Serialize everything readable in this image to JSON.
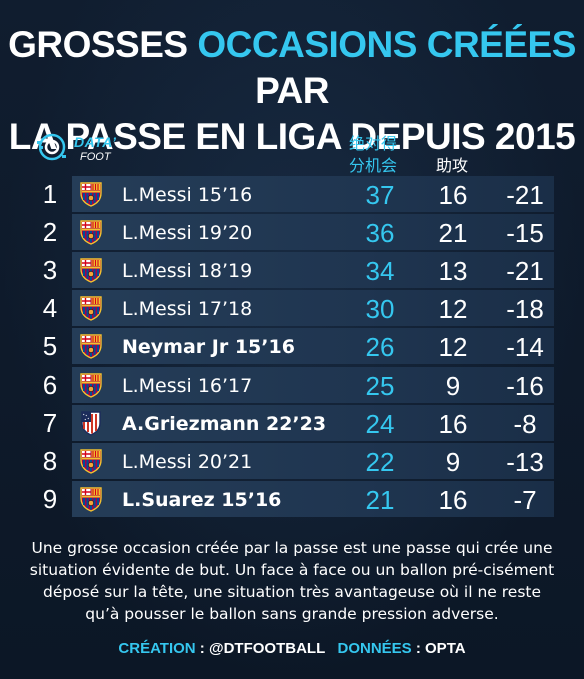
{
  "title": {
    "part1": "GROSSES ",
    "accent": "OCCASIONS CRÉÉES",
    "part2": " PAR",
    "line2": "LA PASSE EN LIGA DEPUIS 2015"
  },
  "logo": {
    "data": "DATA’",
    "foot": "FOOT"
  },
  "headers": {
    "big_chances": [
      "绝对得",
      "分机会"
    ],
    "assists": "助攻"
  },
  "colors": {
    "accent": "#35c7ef",
    "background": "#0e1a2b",
    "row": "#223a55"
  },
  "rows": [
    {
      "rank": "1",
      "player": "L.Messi 15’16",
      "club": "barcelona",
      "big_chances": "37",
      "assists": "16",
      "diff": "-21"
    },
    {
      "rank": "2",
      "player": "L.Messi 19’20",
      "club": "barcelona",
      "big_chances": "36",
      "assists": "21",
      "diff": "-15"
    },
    {
      "rank": "3",
      "player": "L.Messi 18’19",
      "club": "barcelona",
      "big_chances": "34",
      "assists": "13",
      "diff": "-21"
    },
    {
      "rank": "4",
      "player": "L.Messi 17’18",
      "club": "barcelona",
      "big_chances": "30",
      "assists": "12",
      "diff": "-18"
    },
    {
      "rank": "5",
      "player": "Neymar Jr 15’16",
      "club": "barcelona",
      "big_chances": "26",
      "assists": "12",
      "diff": "-14"
    },
    {
      "rank": "6",
      "player": "L.Messi 16’17",
      "club": "barcelona",
      "big_chances": "25",
      "assists": "9",
      "diff": "-16"
    },
    {
      "rank": "7",
      "player": "A.Griezmann 22’23",
      "club": "atletico",
      "big_chances": "24",
      "assists": "16",
      "diff": "-8"
    },
    {
      "rank": "8",
      "player": "L.Messi 20’21",
      "club": "barcelona",
      "big_chances": "22",
      "assists": "9",
      "diff": "-13"
    },
    {
      "rank": "9",
      "player": "L.Suarez 15’16",
      "club": "barcelona",
      "big_chances": "21",
      "assists": "16",
      "diff": "-7"
    }
  ],
  "description": "Une grosse occasion créée par la passe est une passe qui crée une situation évidente de but. Un face à face ou un ballon pré-cisément déposé sur la tête, une situation très avantageuse où il ne reste qu’à pousser le ballon sans grande pression adverse.",
  "credits": {
    "creation_label": "CRÉATION",
    "creation_value": " : @DTFOOTBALL",
    "data_label": "DONNÉES",
    "data_value": " : OPTA"
  }
}
